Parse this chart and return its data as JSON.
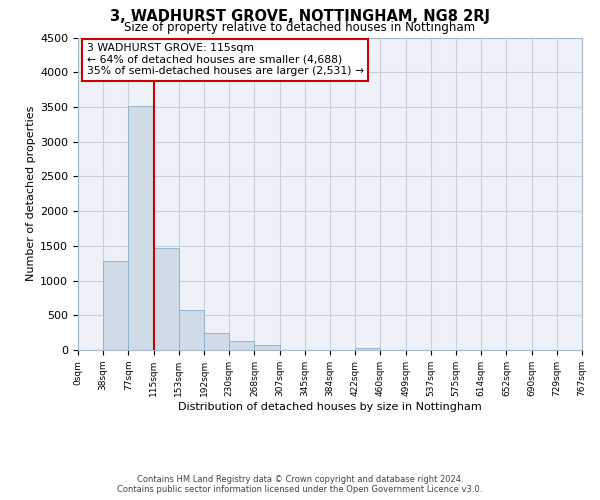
{
  "title": "3, WADHURST GROVE, NOTTINGHAM, NG8 2RJ",
  "subtitle": "Size of property relative to detached houses in Nottingham",
  "xlabel": "Distribution of detached houses by size in Nottingham",
  "ylabel": "Number of detached properties",
  "bin_labels": [
    "0sqm",
    "38sqm",
    "77sqm",
    "115sqm",
    "153sqm",
    "192sqm",
    "230sqm",
    "268sqm",
    "307sqm",
    "345sqm",
    "384sqm",
    "422sqm",
    "460sqm",
    "499sqm",
    "537sqm",
    "575sqm",
    "614sqm",
    "652sqm",
    "690sqm",
    "729sqm",
    "767sqm"
  ],
  "bar_values": [
    0,
    1280,
    3510,
    1470,
    580,
    245,
    130,
    70,
    0,
    0,
    0,
    30,
    0,
    0,
    0,
    0,
    0,
    0,
    0,
    0
  ],
  "bar_color": "#cfdce8",
  "bar_edge_color": "#8aaec8",
  "vline_color": "#cc0000",
  "vline_pos": 3,
  "ylim": [
    0,
    4500
  ],
  "yticks": [
    0,
    500,
    1000,
    1500,
    2000,
    2500,
    3000,
    3500,
    4000,
    4500
  ],
  "annotation_title": "3 WADHURST GROVE: 115sqm",
  "annotation_line2": "← 64% of detached houses are smaller (4,688)",
  "annotation_line3": "35% of semi-detached houses are larger (2,531) →",
  "footer_line1": "Contains HM Land Registry data © Crown copyright and database right 2024.",
  "footer_line2": "Contains public sector information licensed under the Open Government Licence v3.0.",
  "bg_color": "#ffffff",
  "plot_bg_color": "#eef2f8",
  "grid_color": "#c8d0dc"
}
